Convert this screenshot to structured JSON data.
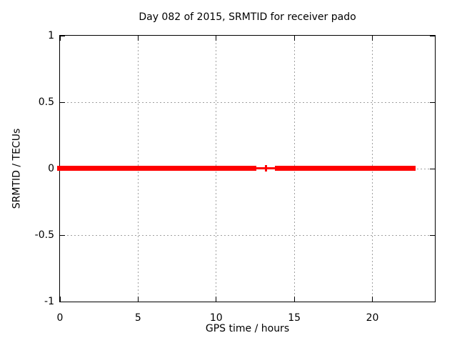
{
  "chart_data": {
    "type": "scatter",
    "title": "Day 082 of 2015, SRMTID for receiver pado",
    "xlabel": "GPS time / hours",
    "ylabel": "SRMTID / TECUs",
    "xlim": [
      0,
      24
    ],
    "ylim": [
      -1,
      1
    ],
    "xticks": [
      0,
      5,
      10,
      15,
      20
    ],
    "xtick_labels": [
      "0",
      "5",
      "10",
      "15",
      "20"
    ],
    "yticks": [
      1,
      0.5,
      0,
      -0.5,
      -1
    ],
    "ytick_labels": [
      "1",
      "0.5",
      "0",
      "-0.5",
      "-1"
    ],
    "grid": true,
    "grid_color": "#a0a0a0",
    "border_color": "#000000",
    "background_color": "#ffffff",
    "legend": "none",
    "series": [
      {
        "name": "SRMTID",
        "color": "#ff0000",
        "marker": "+",
        "y_value": 0,
        "dense_segments": [
          {
            "x_start": 0.0,
            "x_end": 12.4,
            "y": 0
          },
          {
            "x_start": 13.95,
            "x_end": 22.6,
            "y": 0
          }
        ],
        "gap_points": [
          {
            "x": 12.75,
            "y": 0,
            "style": "dash"
          },
          {
            "x": 13.2,
            "y": 0,
            "style": "plus"
          },
          {
            "x": 13.65,
            "y": 0,
            "style": "dash"
          }
        ]
      }
    ]
  }
}
